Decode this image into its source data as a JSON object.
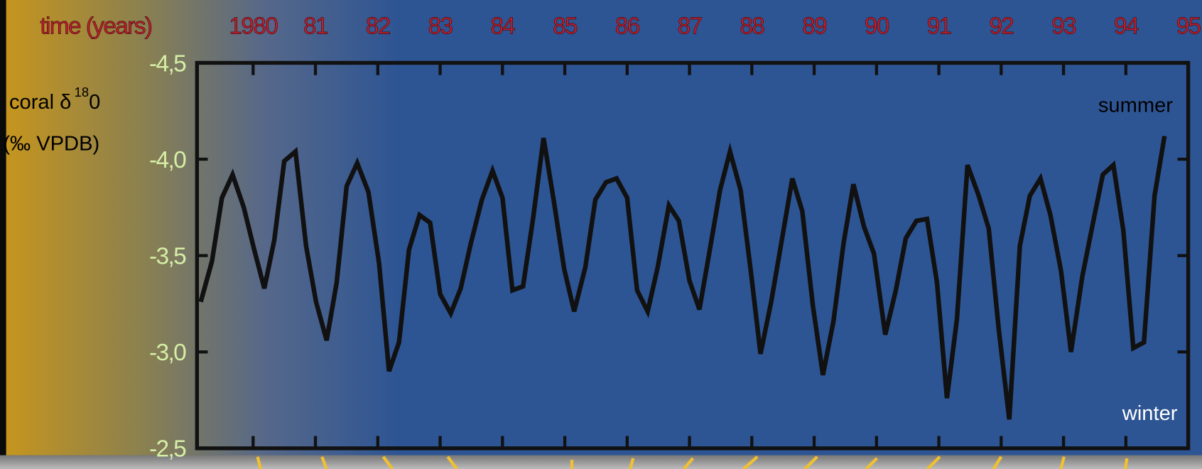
{
  "chart_data": {
    "type": "line",
    "x_label": "time (years)",
    "y_label": {
      "text": "coral δ",
      "superscript": "18",
      "suffix": "0",
      "unit": "(‰ VPDB)"
    },
    "annotations": [
      "summer",
      "winter"
    ],
    "color": "#111111",
    "x": [
      1979.16,
      1979.34,
      1979.5,
      1979.67,
      1979.85,
      1980.01,
      1980.18,
      1980.34,
      1980.5,
      1980.68,
      1980.85,
      1981.01,
      1981.18,
      1981.34,
      1981.5,
      1981.67,
      1981.85,
      1982.02,
      1982.18,
      1982.34,
      1982.5,
      1982.67,
      1982.84,
      1983.0,
      1983.17,
      1983.33,
      1983.49,
      1983.67,
      1983.84,
      1984.0,
      1984.16,
      1984.33,
      1984.49,
      1984.66,
      1984.82,
      1984.99,
      1985.15,
      1985.33,
      1985.49,
      1985.66,
      1985.83,
      1986.0,
      1986.16,
      1986.33,
      1986.49,
      1986.67,
      1986.83,
      1987.0,
      1987.16,
      1987.32,
      1987.49,
      1987.65,
      1987.82,
      1987.98,
      1988.14,
      1988.31,
      1988.47,
      1988.65,
      1988.81,
      1988.98,
      1989.14,
      1989.31,
      1989.47,
      1989.63,
      1989.8,
      1989.96,
      1990.14,
      1990.31,
      1990.47,
      1990.64,
      1990.81,
      1990.97,
      1991.13,
      1991.29,
      1991.46,
      1991.64,
      1991.8,
      1991.96,
      1992.13,
      1992.3,
      1992.46,
      1992.63,
      1992.79,
      1992.96,
      1993.12,
      1993.3,
      1993.46,
      1993.63,
      1993.8,
      1993.96,
      1994.12,
      1994.29,
      1994.46,
      1994.62
    ],
    "values": [
      -3.26,
      -3.47,
      -3.8,
      -3.92,
      -3.75,
      -3.54,
      -3.33,
      -3.58,
      -3.99,
      -4.04,
      -3.55,
      -3.26,
      -3.06,
      -3.36,
      -3.86,
      -3.98,
      -3.83,
      -3.46,
      -2.9,
      -3.05,
      -3.53,
      -3.71,
      -3.67,
      -3.3,
      -3.2,
      -3.33,
      -3.56,
      -3.79,
      -3.94,
      -3.8,
      -3.32,
      -3.34,
      -3.69,
      -4.11,
      -3.79,
      -3.43,
      -3.21,
      -3.44,
      -3.79,
      -3.88,
      -3.9,
      -3.8,
      -3.32,
      -3.21,
      -3.44,
      -3.76,
      -3.68,
      -3.37,
      -3.22,
      -3.52,
      -3.84,
      -4.04,
      -3.84,
      -3.43,
      -2.99,
      -3.26,
      -3.56,
      -3.9,
      -3.73,
      -3.24,
      -2.88,
      -3.16,
      -3.56,
      -3.87,
      -3.65,
      -3.51,
      -3.09,
      -3.32,
      -3.59,
      -3.68,
      -3.69,
      -3.36,
      -2.76,
      -3.17,
      -3.97,
      -3.81,
      -3.64,
      -3.12,
      -2.65,
      -3.55,
      -3.81,
      -3.9,
      -3.71,
      -3.42,
      -3.0,
      -3.39,
      -3.65,
      -3.92,
      -3.97,
      -3.63,
      -3.02,
      -3.05,
      -3.81,
      -4.12
    ],
    "xlim": [
      1979.1,
      1995
    ],
    "xticks": [
      {
        "value": 1980,
        "label": "1980"
      },
      {
        "value": 1981,
        "label": "81"
      },
      {
        "value": 1982,
        "label": "82"
      },
      {
        "value": 1983,
        "label": "83"
      },
      {
        "value": 1984,
        "label": "84"
      },
      {
        "value": 1985,
        "label": "85"
      },
      {
        "value": 1986,
        "label": "86"
      },
      {
        "value": 1987,
        "label": "87"
      },
      {
        "value": 1988,
        "label": "88"
      },
      {
        "value": 1989,
        "label": "89"
      },
      {
        "value": 1990,
        "label": "90"
      },
      {
        "value": 1991,
        "label": "91"
      },
      {
        "value": 1992,
        "label": "92"
      },
      {
        "value": 1993,
        "label": "93"
      },
      {
        "value": 1994,
        "label": "94"
      },
      {
        "value": 1995,
        "label": "95"
      }
    ],
    "ylim": [
      -2.5,
      -4.5
    ],
    "yticks": [
      {
        "value": -4.5,
        "label": "-4,5"
      },
      {
        "value": -4.0,
        "label": "-4,0"
      },
      {
        "value": -3.5,
        "label": "-3,5"
      },
      {
        "value": -3.0,
        "label": "-3,0"
      },
      {
        "value": -2.5,
        "label": "-2,5"
      }
    ]
  }
}
